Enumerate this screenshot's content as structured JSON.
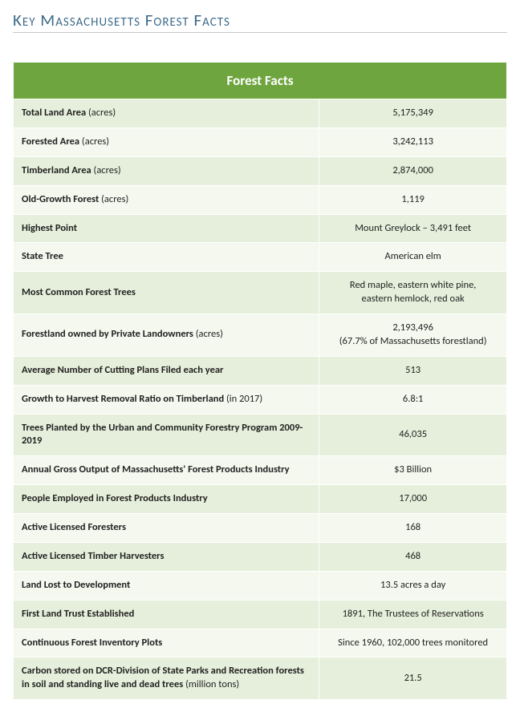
{
  "title": "Key Massachusetts Forest Facts",
  "table": {
    "header": "Forest Facts",
    "header_bg": "#6fa53e",
    "header_fg": "#ffffff",
    "row_odd_bg": "#e6efdb",
    "row_even_bg": "#f4f8ee",
    "border_color": "#ffffff",
    "title_color": "#3d6b8a",
    "label_fontsize": 12.5,
    "header_fontsize": 17,
    "rows": [
      {
        "label": "Total Land Area",
        "unit": "(acres)",
        "value": "5,175,349"
      },
      {
        "label": "Forested Area",
        "unit": "(acres)",
        "value": "3,242,113"
      },
      {
        "label": "Timberland Area",
        "unit": "(acres)",
        "value": "2,874,000"
      },
      {
        "label": "Old-Growth Forest",
        "unit": "(acres)",
        "value": "1,119"
      },
      {
        "label": "Highest Point",
        "unit": "",
        "value": "Mount Greylock – 3,491 feet"
      },
      {
        "label": "State Tree",
        "unit": "",
        "value": "American elm"
      },
      {
        "label": "Most Common Forest Trees",
        "unit": "",
        "value": "Red maple, eastern white pine,",
        "value2": "eastern hemlock, red oak"
      },
      {
        "label": "Forestland owned by Private Landowners",
        "unit": "(acres)",
        "value": "2,193,496",
        "value2": "(67.7% of Massachusetts forestland)"
      },
      {
        "label": "Average Number of Cutting Plans Filed each year",
        "unit": "",
        "value": "513"
      },
      {
        "label": "Growth to Harvest Removal Ratio on Timberland",
        "unit": "(in 2017)",
        "value": "6.8:1"
      },
      {
        "label": "Trees Planted by the Urban and Community Forestry Program 2009-2019",
        "unit": "",
        "value": "46,035"
      },
      {
        "label": "Annual Gross Output of Massachusetts' Forest Products Industry",
        "unit": "",
        "value": "$3 Billion"
      },
      {
        "label": "People Employed in Forest Products Industry",
        "unit": "",
        "value": "17,000"
      },
      {
        "label": "Active Licensed Foresters",
        "unit": "",
        "value": "168"
      },
      {
        "label": "Active Licensed Timber Harvesters",
        "unit": "",
        "value": "468"
      },
      {
        "label": "Land Lost to Development",
        "unit": "",
        "value": "13.5 acres a day"
      },
      {
        "label": "First Land Trust Established",
        "unit": "",
        "value": "1891, The Trustees of Reservations"
      },
      {
        "label": "Continuous Forest Inventory Plots",
        "unit": "",
        "value": "Since 1960, 102,000 trees monitored"
      },
      {
        "label": "Carbon stored on DCR-Division of State Parks and Recreation forests in soil and standing live and dead trees",
        "unit": "(million tons)",
        "value": "21.5"
      }
    ]
  }
}
